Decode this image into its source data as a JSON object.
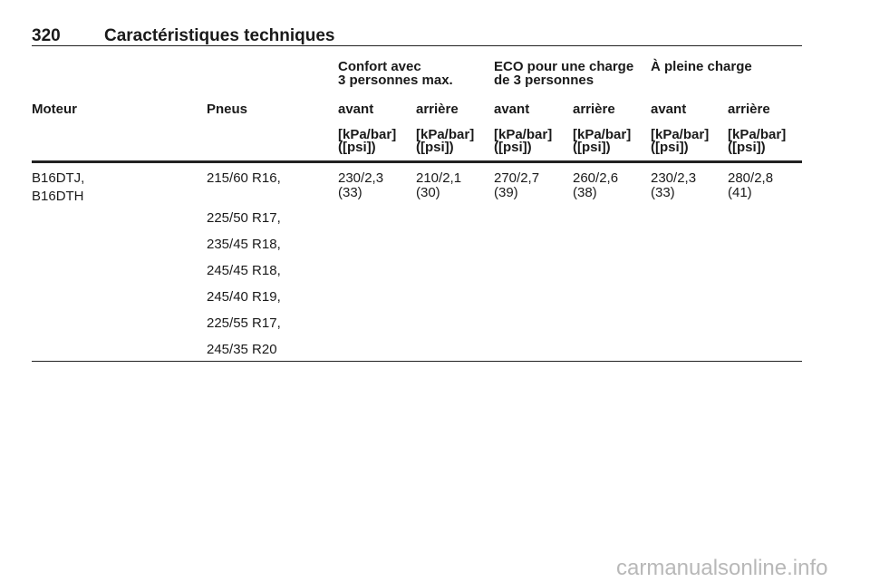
{
  "header": {
    "page_number": "320",
    "title": "Caractéristiques techniques"
  },
  "table": {
    "group_headers": [
      [
        "Confort avec",
        "3 personnes max."
      ],
      [
        "ECO pour une charge",
        "de 3 personnes"
      ],
      [
        "À pleine charge"
      ]
    ],
    "columns": [
      "Moteur",
      "Pneus",
      "avant",
      "arrière",
      "avant",
      "arrière",
      "avant",
      "arrière"
    ],
    "units": [
      [
        "[kPa/bar]",
        "([psi])"
      ],
      [
        "[kPa/bar]",
        "([psi])"
      ],
      [
        "[kPa/bar]",
        "([psi])"
      ],
      [
        "[kPa/bar]",
        "([psi])"
      ],
      [
        "[kPa/bar]",
        "([psi])"
      ],
      [
        "[kPa/bar]",
        "([psi])"
      ]
    ],
    "rows": [
      {
        "engine": [
          "B16DTJ,",
          "B16DTH"
        ],
        "tires": [
          "215/60 R16,",
          "225/50 R17,",
          "235/45 R18,",
          "245/45 R18,",
          "245/40 R19,",
          "225/55 R17,",
          "245/35 R20"
        ],
        "pressures": [
          [
            "230/2,3",
            "(33)"
          ],
          [
            "210/2,1",
            "(30)"
          ],
          [
            "270/2,7",
            "(39)"
          ],
          [
            "260/2,6",
            "(38)"
          ],
          [
            "230/2,3",
            "(33)"
          ],
          [
            "280/2,8",
            "(41)"
          ]
        ]
      }
    ]
  },
  "watermark": "carmanualsonline.info"
}
